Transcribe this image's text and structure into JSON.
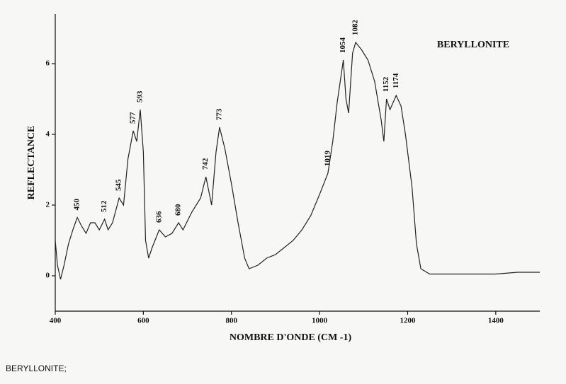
{
  "chart_data": {
    "type": "line",
    "title": "BERYLLONITE",
    "x_label": "NOMBRE D'ONDE (CM -1)",
    "y_label": "REFLECTANCE",
    "x": [
      400,
      405,
      412,
      420,
      430,
      440,
      450,
      460,
      470,
      480,
      490,
      500,
      512,
      520,
      530,
      545,
      555,
      565,
      577,
      585,
      593,
      600,
      605,
      612,
      620,
      636,
      650,
      665,
      680,
      690,
      710,
      730,
      742,
      755,
      765,
      773,
      785,
      800,
      815,
      830,
      840,
      860,
      880,
      900,
      920,
      940,
      960,
      980,
      1000,
      1019,
      1030,
      1040,
      1054,
      1060,
      1066,
      1075,
      1082,
      1095,
      1110,
      1125,
      1140,
      1146,
      1152,
      1160,
      1174,
      1185,
      1195,
      1210,
      1220,
      1230,
      1250,
      1300,
      1350,
      1400,
      1450,
      1500
    ],
    "series": [
      {
        "name": "BERYLLONITE",
        "color": "#222222",
        "values": [
          1.0,
          0.3,
          -0.1,
          0.3,
          0.9,
          1.3,
          1.65,
          1.4,
          1.2,
          1.5,
          1.5,
          1.3,
          1.6,
          1.3,
          1.5,
          2.2,
          2.0,
          3.3,
          4.1,
          3.8,
          4.7,
          3.5,
          1.0,
          0.5,
          0.8,
          1.3,
          1.1,
          1.2,
          1.5,
          1.3,
          1.8,
          2.2,
          2.8,
          2.0,
          3.5,
          4.2,
          3.6,
          2.6,
          1.5,
          0.5,
          0.2,
          0.3,
          0.5,
          0.6,
          0.8,
          1.0,
          1.3,
          1.7,
          2.3,
          2.9,
          3.8,
          4.9,
          6.1,
          5.0,
          4.6,
          6.3,
          6.6,
          6.4,
          6.1,
          5.5,
          4.4,
          3.8,
          5.0,
          4.7,
          5.1,
          4.8,
          4.0,
          2.5,
          0.9,
          0.2,
          0.05,
          0.05,
          0.05,
          0.05,
          0.1,
          0.1
        ]
      }
    ],
    "peak_labels": [
      450,
      512,
      545,
      577,
      593,
      636,
      680,
      742,
      773,
      1019,
      1054,
      1082,
      1152,
      1174
    ],
    "xlim": [
      400,
      1500
    ],
    "ylim": [
      -1,
      7.4
    ],
    "xticks": [
      400,
      600,
      800,
      1000,
      1200,
      1400
    ],
    "yticks": [
      0,
      2,
      4,
      6
    ]
  },
  "caption": "BERYLLONITE;"
}
